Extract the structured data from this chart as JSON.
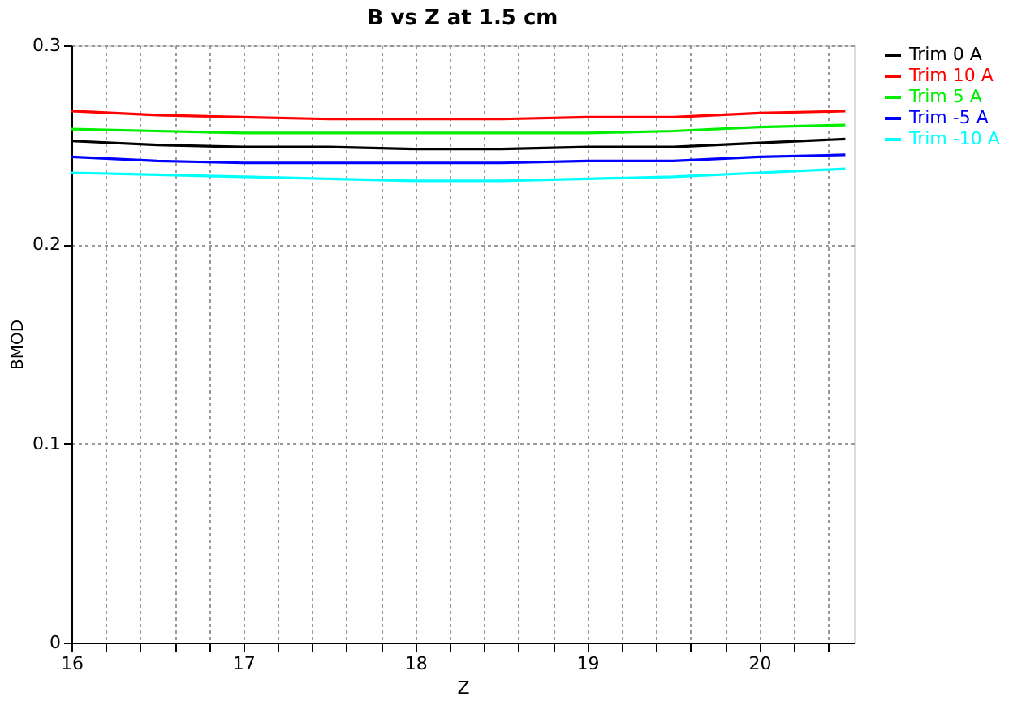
{
  "chart_data": {
    "type": "line",
    "title": "B vs Z at 1.5 cm",
    "xlabel": "Z",
    "ylabel": "BMOD",
    "x": [
      16,
      16.5,
      17,
      17.5,
      18,
      18.5,
      19,
      19.5,
      20,
      20.5
    ],
    "series": [
      {
        "name": "Trim 0 A",
        "color": "#000000",
        "values": [
          0.252,
          0.25,
          0.249,
          0.249,
          0.248,
          0.248,
          0.249,
          0.249,
          0.251,
          0.253
        ]
      },
      {
        "name": "Trim 10 A",
        "color": "#ff0000",
        "values": [
          0.267,
          0.265,
          0.264,
          0.263,
          0.263,
          0.263,
          0.264,
          0.264,
          0.266,
          0.267
        ]
      },
      {
        "name": "Trim 5 A",
        "color": "#00ee00",
        "values": [
          0.258,
          0.257,
          0.256,
          0.256,
          0.256,
          0.256,
          0.256,
          0.257,
          0.259,
          0.26
        ]
      },
      {
        "name": "Trim -5 A",
        "color": "#0000ff",
        "values": [
          0.244,
          0.242,
          0.241,
          0.241,
          0.241,
          0.241,
          0.242,
          0.242,
          0.244,
          0.245
        ]
      },
      {
        "name": "Trim -10 A",
        "color": "#00ffff",
        "values": [
          0.236,
          0.235,
          0.234,
          0.233,
          0.232,
          0.232,
          0.233,
          0.234,
          0.236,
          0.238
        ]
      }
    ],
    "xlim": [
      16,
      20.55
    ],
    "ylim": [
      0,
      0.3
    ],
    "xticks": [
      16,
      {
        "value": 16.2,
        "label": null
      },
      {
        "value": 16.4,
        "label": null
      },
      {
        "value": 16.6,
        "label": null
      },
      {
        "value": 16.8,
        "label": null
      },
      17,
      {
        "value": 17.2,
        "label": null
      },
      {
        "value": 17.4,
        "label": null
      },
      {
        "value": 17.6,
        "label": null
      },
      {
        "value": 17.8,
        "label": null
      },
      18,
      {
        "value": 18.2,
        "label": null
      },
      {
        "value": 18.4,
        "label": null
      },
      {
        "value": 18.6,
        "label": null
      },
      {
        "value": 18.8,
        "label": null
      },
      19,
      {
        "value": 19.2,
        "label": null
      },
      {
        "value": 19.4,
        "label": null
      },
      {
        "value": 19.6,
        "label": null
      },
      {
        "value": 19.8,
        "label": null
      },
      20,
      {
        "value": 20.2,
        "label": null
      },
      {
        "value": 20.4,
        "label": null
      }
    ],
    "yticks": [
      0,
      0.1,
      0.2,
      0.3
    ],
    "grid": true,
    "legend": "right",
    "marker": "none",
    "line_style": "solid"
  }
}
